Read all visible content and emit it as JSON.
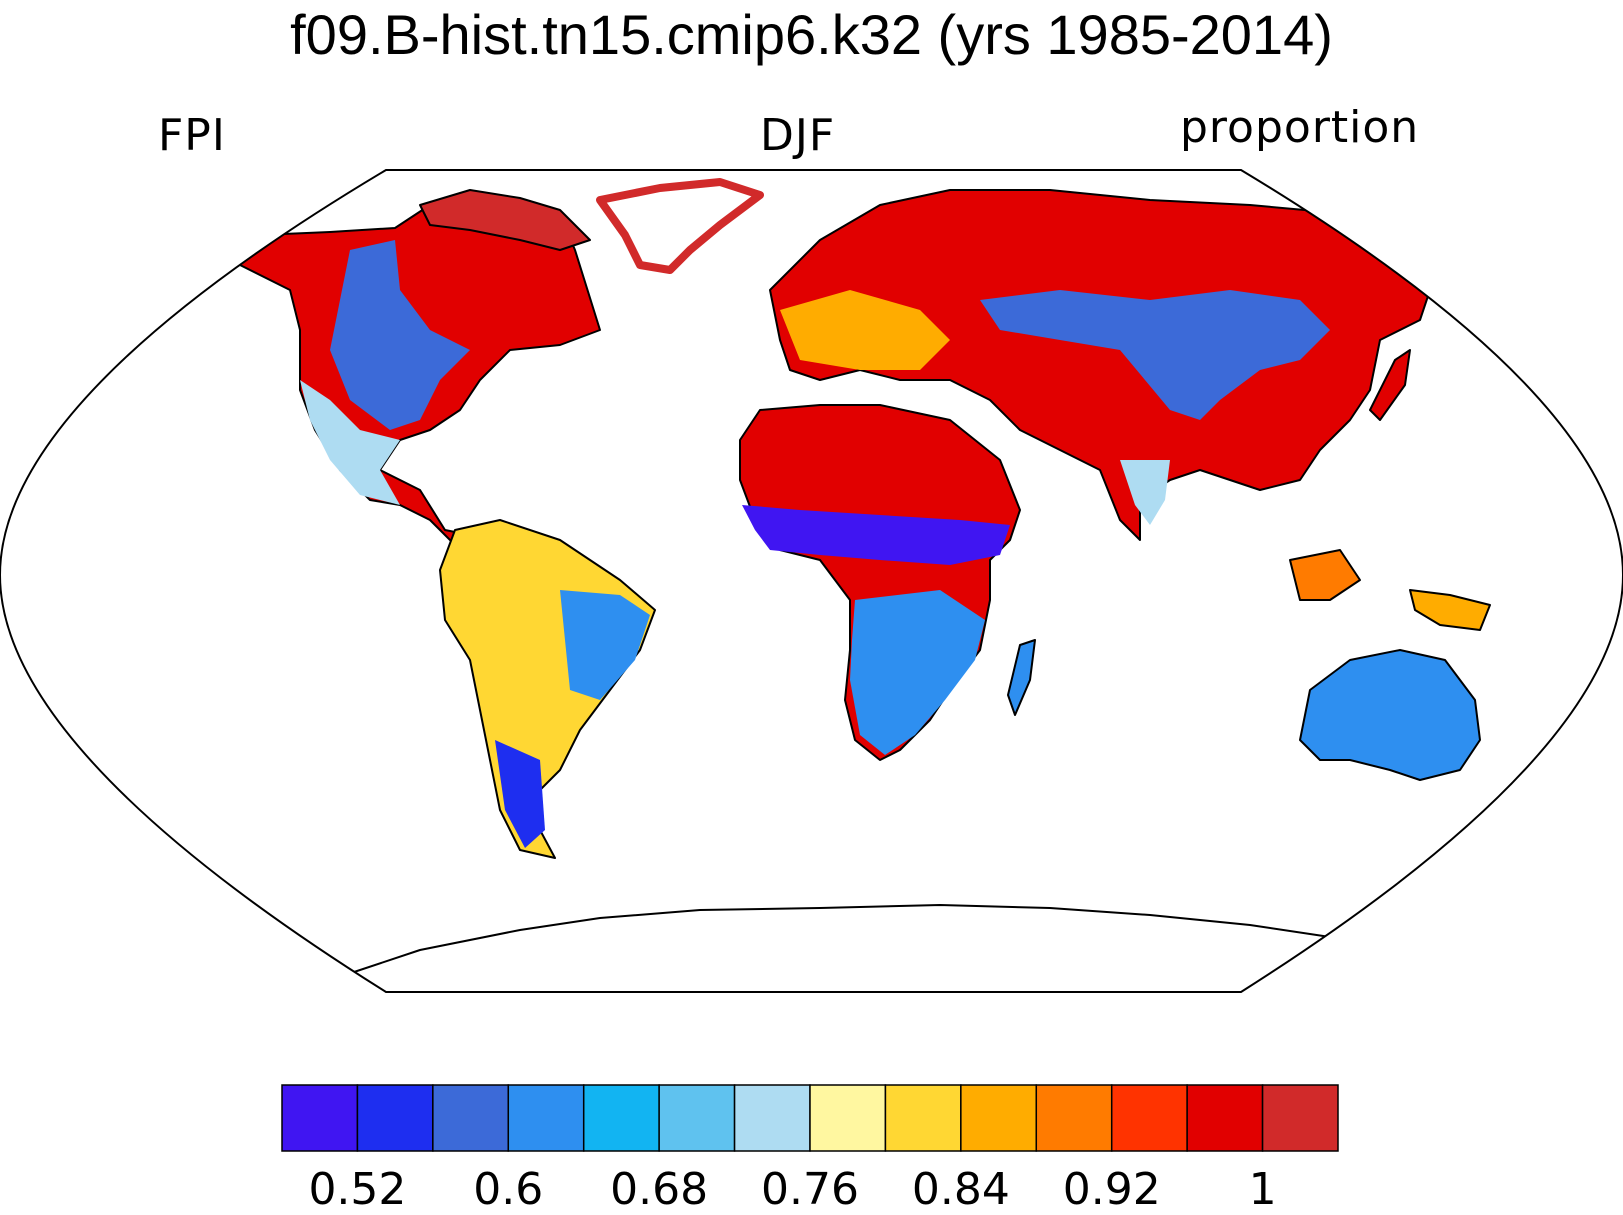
{
  "title": "f09.B-hist.tn15.cmip6.k32 (yrs 1985-2014)",
  "left_label": "FPI",
  "center_label": "DJF",
  "right_label": "proportion",
  "legend": {
    "colors": [
      "#4015f2",
      "#1e2ef0",
      "#3c6ad8",
      "#2e8ff0",
      "#12b4f2",
      "#5fc2ef",
      "#aedcf2",
      "#fff7a0",
      "#ffd733",
      "#ffac00",
      "#ff7b00",
      "#ff3300",
      "#e10000",
      "#d12a2a"
    ],
    "tick_labels": [
      "0.52",
      "0.6",
      "0.68",
      "0.76",
      "0.84",
      "0.92",
      "1"
    ]
  }
}
